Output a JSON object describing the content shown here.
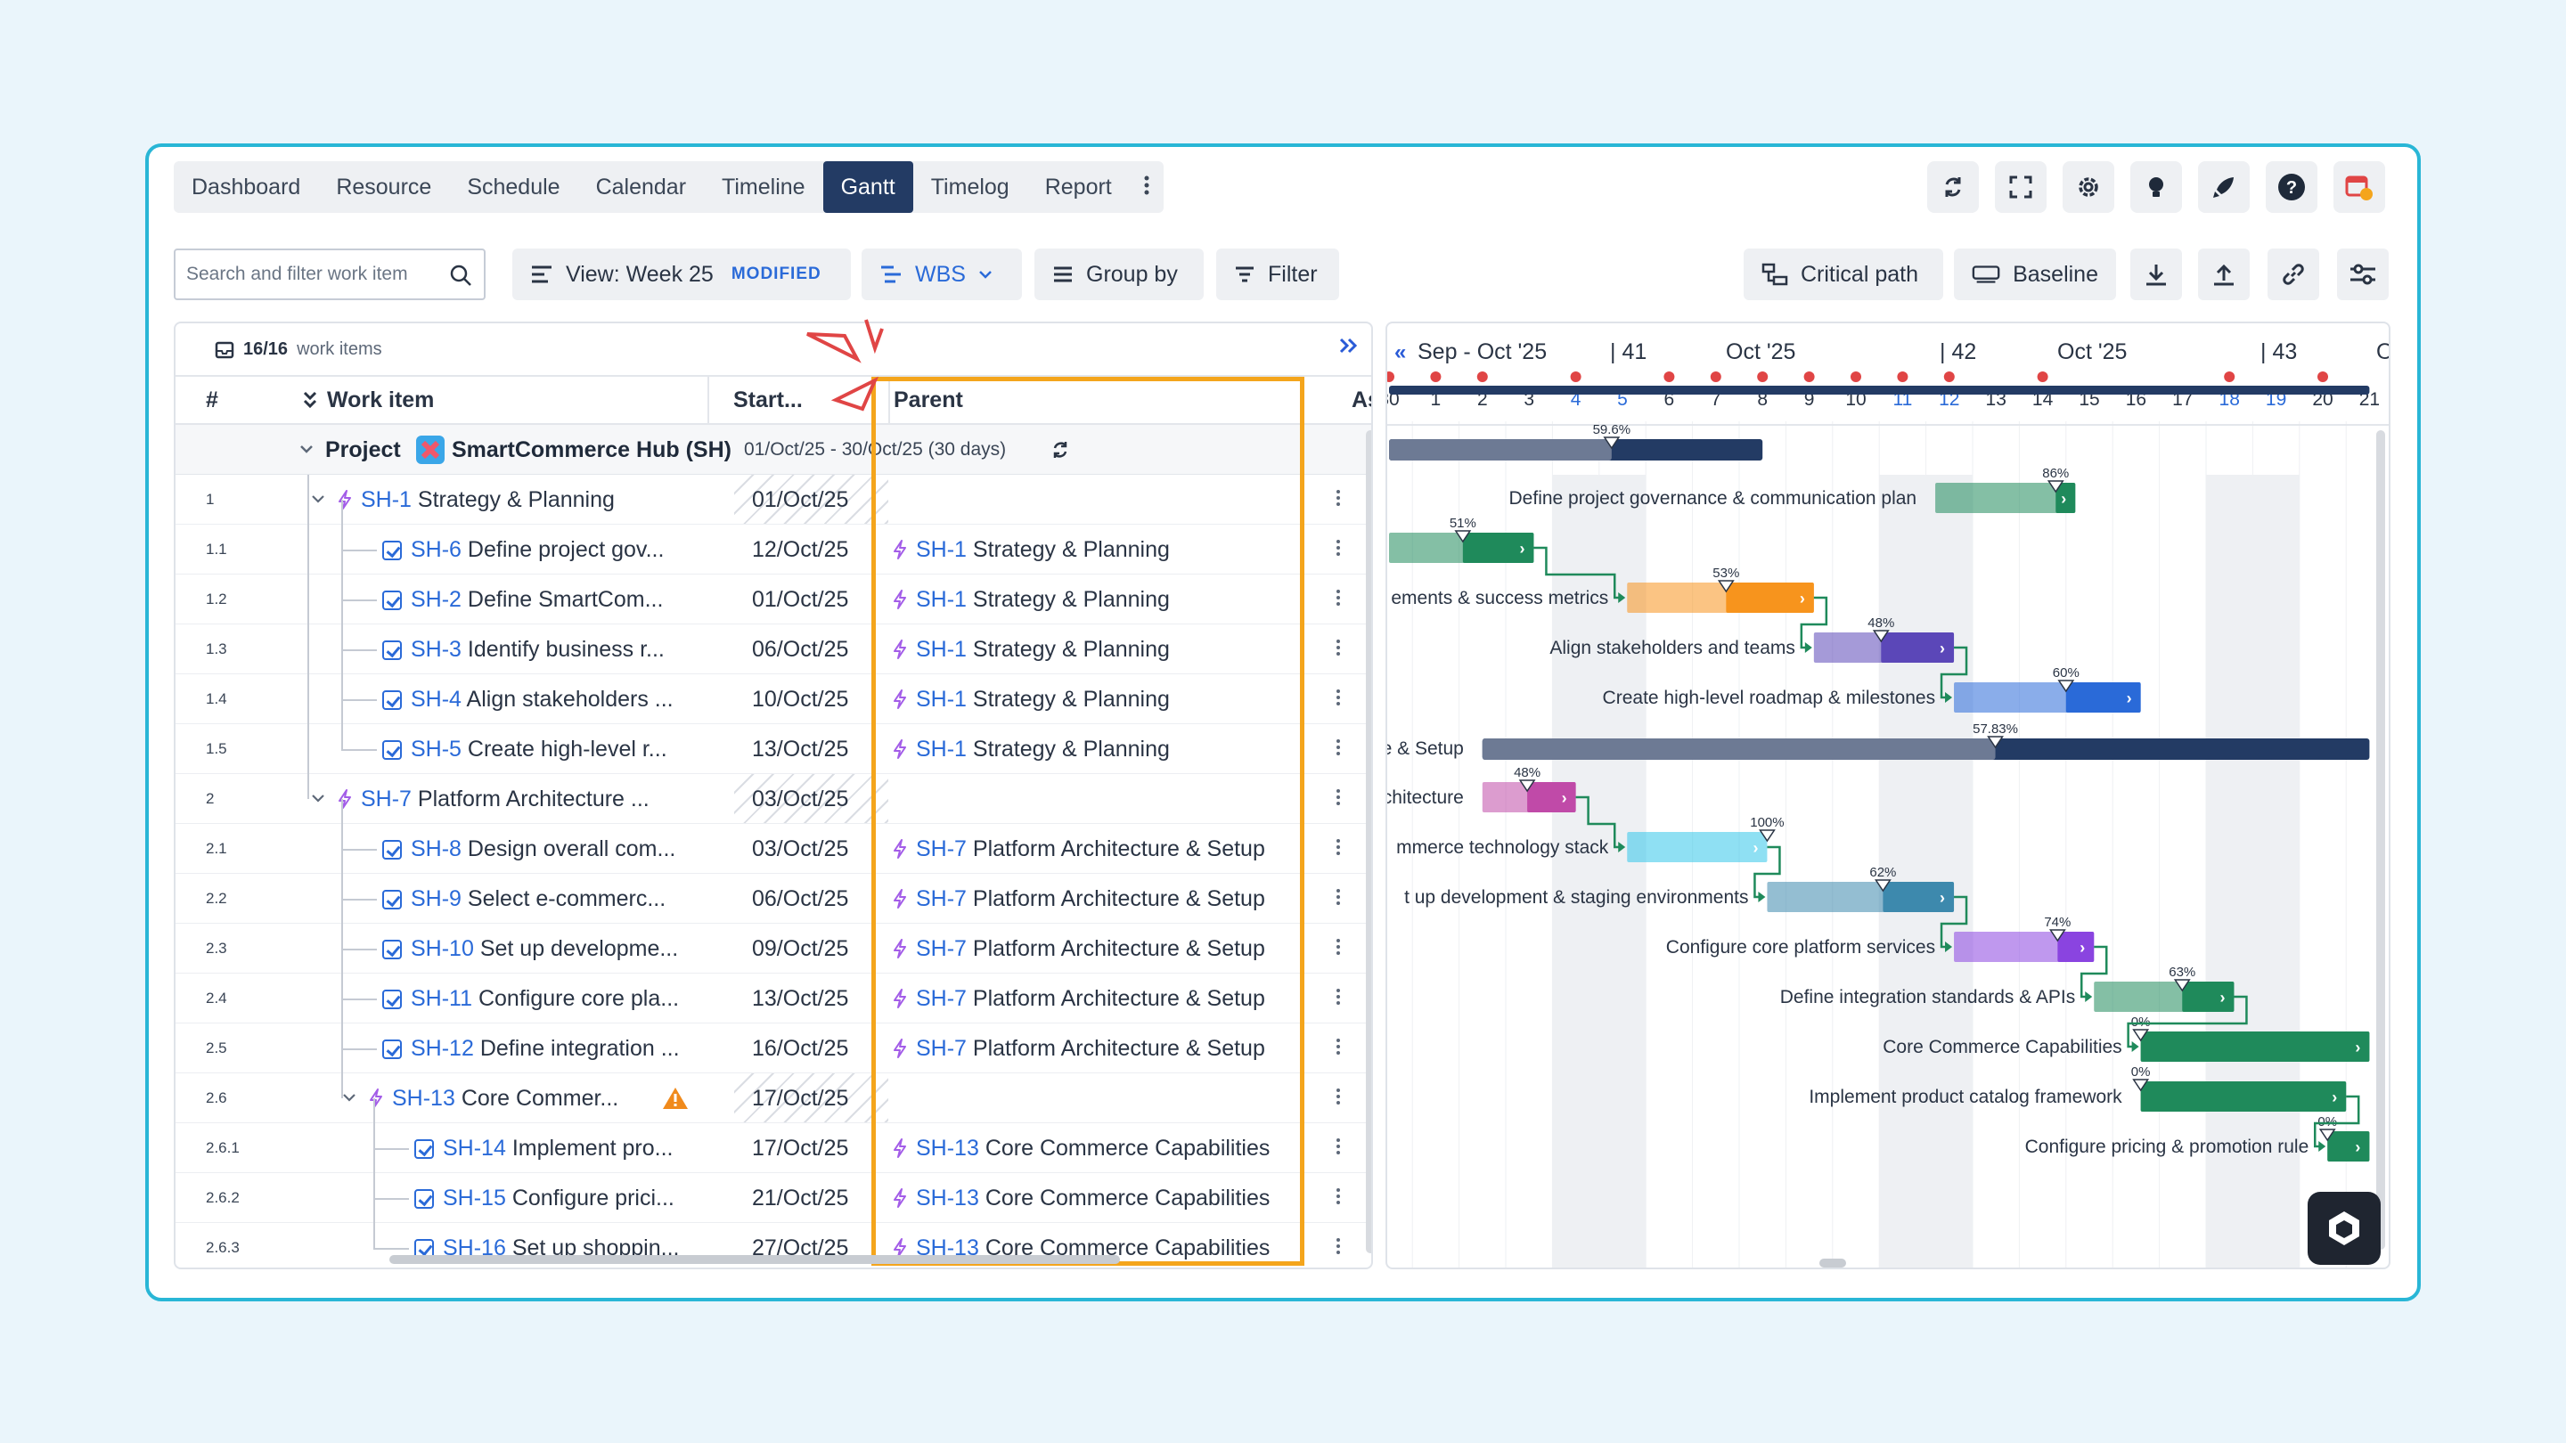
{
  "nav": {
    "tabs": [
      "Dashboard",
      "Resource",
      "Schedule",
      "Calendar",
      "Timeline",
      "Gantt",
      "Timelog",
      "Report"
    ],
    "active": "Gantt",
    "more_icon": "vertical-ellipsis-icon",
    "right_icons": [
      "sync-icon",
      "fullscreen-icon",
      "gear-icon",
      "lightbulb-icon",
      "rocket-icon",
      "help-icon",
      "calendar-clock-icon"
    ]
  },
  "toolbar": {
    "search_placeholder": "Search and filter work item",
    "view_label": "View: Week 25",
    "view_badge": "MODIFIED",
    "wbs_label": "WBS",
    "group_label": "Group by",
    "filter_label": "Filter",
    "critical_label": "Critical path",
    "baseline_label": "Baseline",
    "icons": [
      "download-icon",
      "upload-icon",
      "link-icon",
      "settings-sliders-icon"
    ]
  },
  "grid": {
    "count_bold": "16/16",
    "count_text": "work items",
    "expand_icon": "double-chevron-right-icon",
    "headers": {
      "num": "#",
      "work_item": "Work item",
      "start": "Start...",
      "parent": "Parent",
      "assignee": "As"
    },
    "project": {
      "label": "Project",
      "name": "SmartCommerce Hub (SH)",
      "dates": "01/Oct/25 - 30/Oct/25 (30 days)"
    },
    "rows": [
      {
        "num": "1",
        "key": "SH-1",
        "title": "Strategy & Planning",
        "start": "01/Oct/25",
        "parent_key": "",
        "parent_title": "",
        "type": "epic",
        "level": 1
      },
      {
        "num": "1.1",
        "key": "SH-6",
        "title": "Define project gov...",
        "start": "12/Oct/25",
        "parent_key": "SH-1",
        "parent_title": "Strategy & Planning",
        "type": "task",
        "level": 2
      },
      {
        "num": "1.2",
        "key": "SH-2",
        "title": "Define SmartCom...",
        "start": "01/Oct/25",
        "parent_key": "SH-1",
        "parent_title": "Strategy & Planning",
        "type": "task",
        "level": 2
      },
      {
        "num": "1.3",
        "key": "SH-3",
        "title": "Identify business r...",
        "start": "06/Oct/25",
        "parent_key": "SH-1",
        "parent_title": "Strategy & Planning",
        "type": "task",
        "level": 2
      },
      {
        "num": "1.4",
        "key": "SH-4",
        "title": "Align stakeholders ...",
        "start": "10/Oct/25",
        "parent_key": "SH-1",
        "parent_title": "Strategy & Planning",
        "type": "task",
        "level": 2
      },
      {
        "num": "1.5",
        "key": "SH-5",
        "title": "Create high-level r...",
        "start": "13/Oct/25",
        "parent_key": "SH-1",
        "parent_title": "Strategy & Planning",
        "type": "task",
        "level": 2
      },
      {
        "num": "2",
        "key": "SH-7",
        "title": "Platform Architecture ...",
        "start": "03/Oct/25",
        "parent_key": "",
        "parent_title": "",
        "type": "epic",
        "level": 1
      },
      {
        "num": "2.1",
        "key": "SH-8",
        "title": "Design overall com...",
        "start": "03/Oct/25",
        "parent_key": "SH-7",
        "parent_title": "Platform Architecture & Setup",
        "type": "task",
        "level": 2
      },
      {
        "num": "2.2",
        "key": "SH-9",
        "title": "Select e-commerc...",
        "start": "06/Oct/25",
        "parent_key": "SH-7",
        "parent_title": "Platform Architecture & Setup",
        "type": "task",
        "level": 2
      },
      {
        "num": "2.3",
        "key": "SH-10",
        "title": "Set up developme...",
        "start": "09/Oct/25",
        "parent_key": "SH-7",
        "parent_title": "Platform Architecture & Setup",
        "type": "task",
        "level": 2
      },
      {
        "num": "2.4",
        "key": "SH-11",
        "title": "Configure core pla...",
        "start": "13/Oct/25",
        "parent_key": "SH-7",
        "parent_title": "Platform Architecture & Setup",
        "type": "task",
        "level": 2
      },
      {
        "num": "2.5",
        "key": "SH-12",
        "title": "Define integration ...",
        "start": "16/Oct/25",
        "parent_key": "SH-7",
        "parent_title": "Platform Architecture & Setup",
        "type": "task",
        "level": 2
      },
      {
        "num": "2.6",
        "key": "SH-13",
        "title": "Core Commer...",
        "start": "17/Oct/25",
        "parent_key": "",
        "parent_title": "",
        "type": "epic",
        "level": 2,
        "warning": true
      },
      {
        "num": "2.6.1",
        "key": "SH-14",
        "title": "Implement pro...",
        "start": "17/Oct/25",
        "parent_key": "SH-13",
        "parent_title": "Core Commerce Capabilities",
        "type": "task",
        "level": 3
      },
      {
        "num": "2.6.2",
        "key": "SH-15",
        "title": "Configure prici...",
        "start": "21/Oct/25",
        "parent_key": "SH-13",
        "parent_title": "Core Commerce Capabilities",
        "type": "task",
        "level": 3
      },
      {
        "num": "2.6.3",
        "key": "SH-16",
        "title": "Set up shoppin...",
        "start": "27/Oct/25",
        "parent_key": "SH-13",
        "parent_title": "Core Commerce Capabilities",
        "type": "task",
        "level": 3
      }
    ]
  },
  "gantt": {
    "months": [
      {
        "label": "Sep - Oct '25"
      },
      {
        "label": "| 41"
      },
      {
        "label": "Oct '25"
      },
      {
        "label": "| 42"
      },
      {
        "label": "Oct '25"
      },
      {
        "label": "| 43"
      },
      {
        "label": "O"
      }
    ],
    "days": [
      "30",
      "1",
      "2",
      "3",
      "4",
      "5",
      "6",
      "7",
      "8",
      "9",
      "10",
      "11",
      "12",
      "13",
      "14",
      "15",
      "16",
      "17",
      "18",
      "19",
      "20",
      "21"
    ],
    "weekend_days": [
      "4",
      "5",
      "11",
      "12",
      "18",
      "19"
    ],
    "holiday_dot_days": [
      "30",
      "1",
      "2",
      "4",
      "6",
      "7",
      "8",
      "9",
      "10",
      "11",
      "12",
      "14",
      "18",
      "20"
    ],
    "bars": [
      {
        "pct": "",
        "label": "",
        "color": "#233b64"
      },
      {
        "pct": "59.6%",
        "label": "",
        "color": "#233b64"
      },
      {
        "pct": "86%",
        "label": "Define project governance & communication plan",
        "color": "#1f8a5b"
      },
      {
        "pct": "51%",
        "label": "",
        "color": "#1f8a5b"
      },
      {
        "pct": "53%",
        "label": "ements & success metrics",
        "color": "#f7941d"
      },
      {
        "pct": "48%",
        "label": "Align stakeholders and teams",
        "color": "#5b47b8"
      },
      {
        "pct": "60%",
        "label": "Create high-level roadmap & milestones",
        "color": "#2a6ad8"
      },
      {
        "pct": "57.83%",
        "label": "e & Setup",
        "color": "#233b64"
      },
      {
        "pct": "48%",
        "label": "chitecture",
        "color": "#c04aa8"
      },
      {
        "pct": "100%",
        "label": "mmerce technology stack",
        "color": "#33c6ea"
      },
      {
        "pct": "62%",
        "label": "t up development & staging environments",
        "color": "#3d89ad"
      },
      {
        "pct": "74%",
        "label": "Configure core platform services",
        "color": "#8a44e0"
      },
      {
        "pct": "63%",
        "label": "Define integration standards & APIs",
        "color": "#1f8a5b"
      },
      {
        "pct": "0%",
        "label": "Core Commerce Capabilities",
        "color": "#1f8a5b"
      },
      {
        "pct": "0%",
        "label": "Implement product catalog framework",
        "color": "#1f8a5b"
      },
      {
        "pct": "0%",
        "label": "Configure pricing & promotion rule",
        "color": "#1f8a5b"
      }
    ]
  },
  "fab_icon": "app-logo-icon"
}
